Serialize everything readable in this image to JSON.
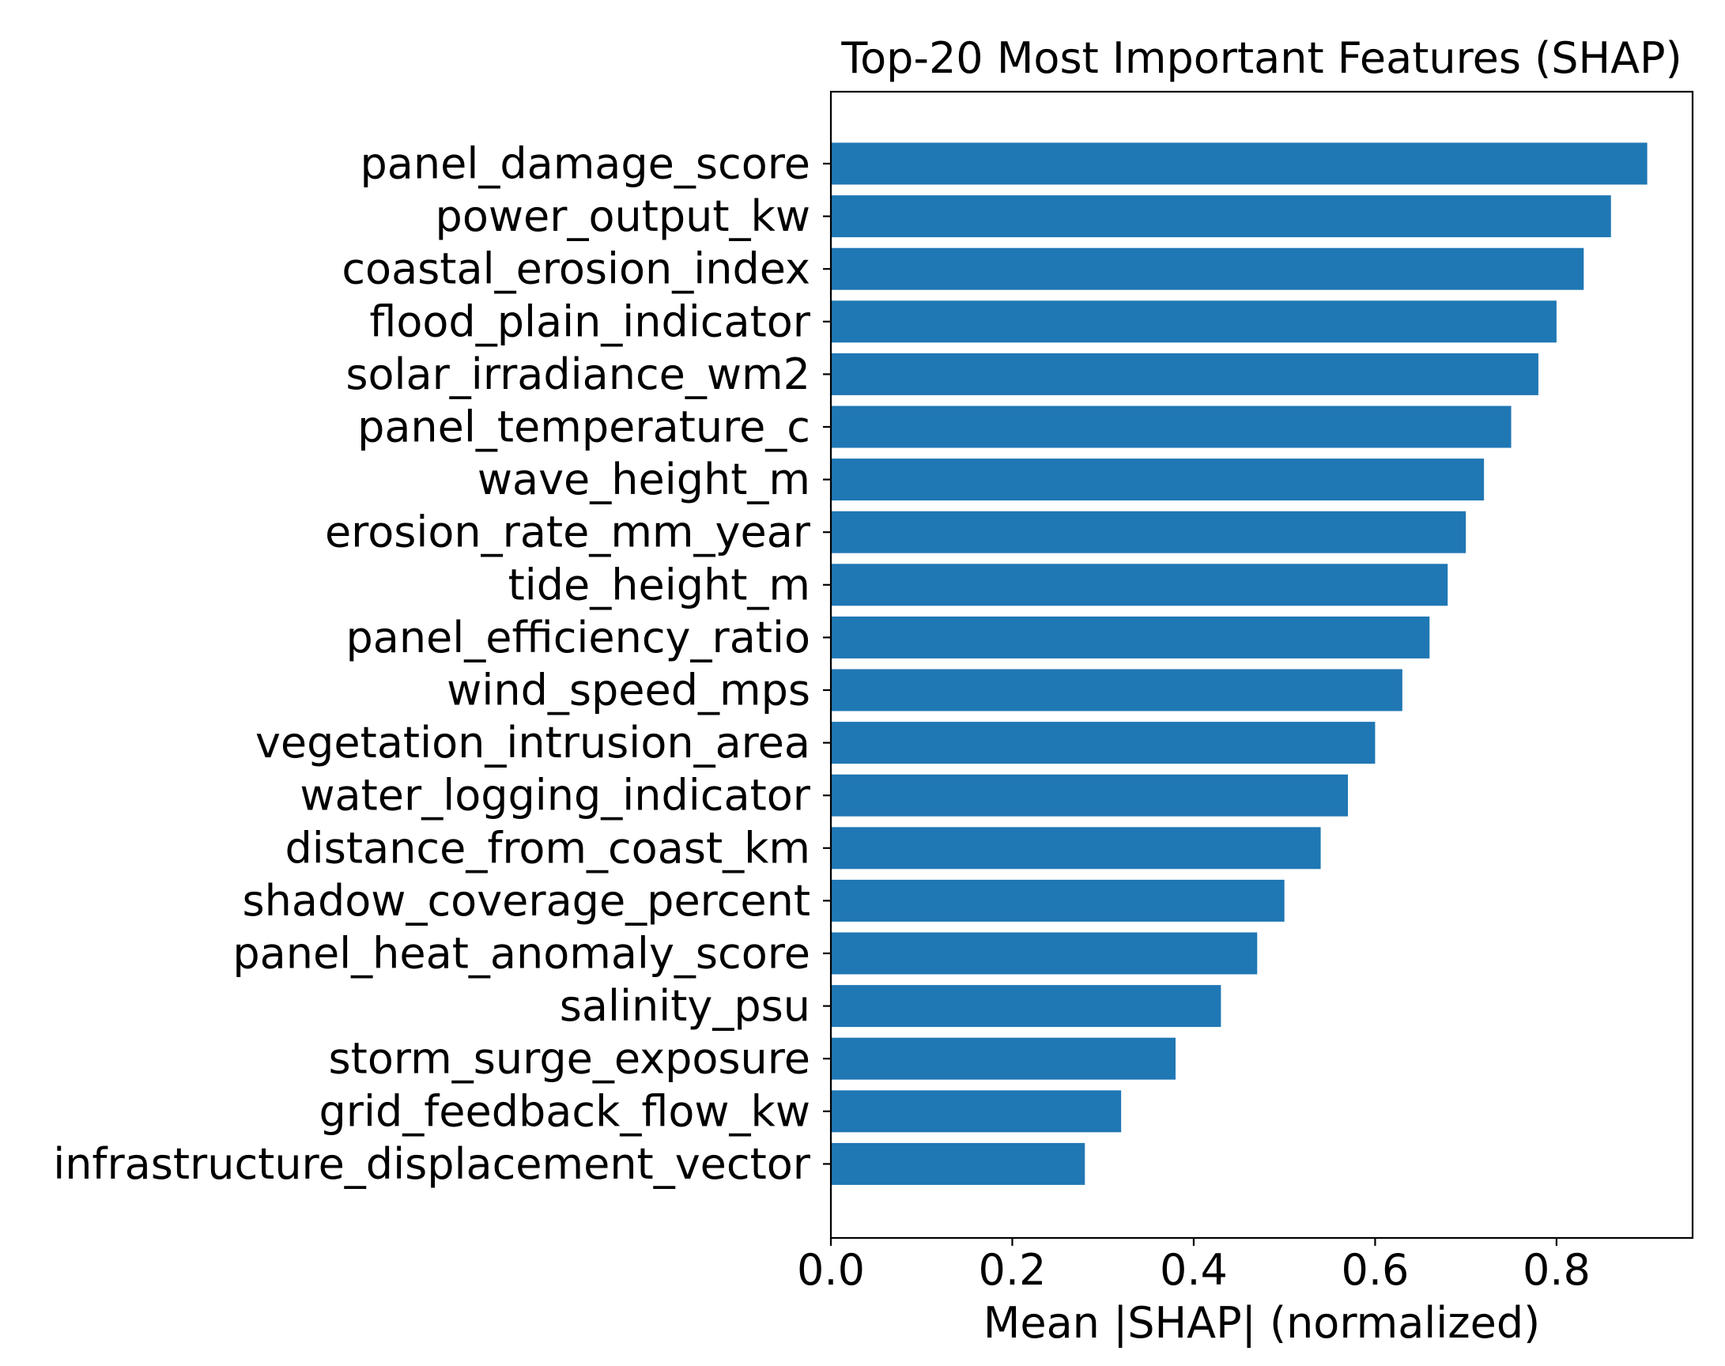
{
  "chart_data": {
    "type": "bar",
    "orientation": "horizontal",
    "title": "Top-20 Most Important Features (SHAP)",
    "xlabel": "Mean |SHAP| (normalized)",
    "ylabel": "",
    "xlim": [
      0,
      0.95
    ],
    "xticks": [
      0.0,
      0.2,
      0.4,
      0.6,
      0.8
    ],
    "xtick_labels": [
      "0.0",
      "0.2",
      "0.4",
      "0.6",
      "0.8"
    ],
    "grid": false,
    "legend": "none",
    "bar_color": "#1f77b4",
    "categories": [
      "panel_damage_score",
      "power_output_kw",
      "coastal_erosion_index",
      "flood_plain_indicator",
      "solar_irradiance_wm2",
      "panel_temperature_c",
      "wave_height_m",
      "erosion_rate_mm_year",
      "tide_height_m",
      "panel_efficiency_ratio",
      "wind_speed_mps",
      "vegetation_intrusion_area",
      "water_logging_indicator",
      "distance_from_coast_km",
      "shadow_coverage_percent",
      "panel_heat_anomaly_score",
      "salinity_psu",
      "storm_surge_exposure",
      "grid_feedback_flow_kw",
      "infrastructure_displacement_vector"
    ],
    "values": [
      0.9,
      0.86,
      0.83,
      0.8,
      0.78,
      0.75,
      0.72,
      0.7,
      0.68,
      0.66,
      0.63,
      0.6,
      0.57,
      0.54,
      0.5,
      0.47,
      0.43,
      0.38,
      0.32,
      0.28
    ]
  }
}
